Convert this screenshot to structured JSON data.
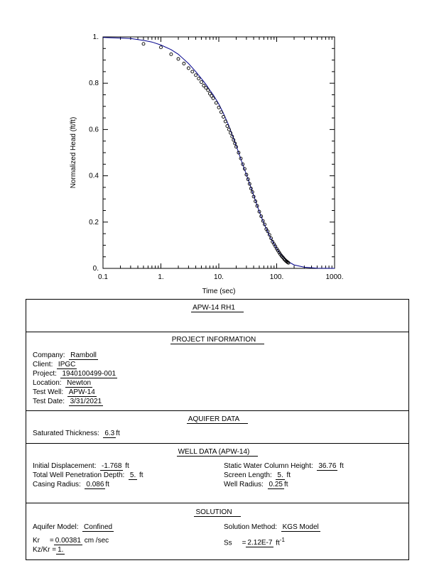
{
  "chart_data": {
    "type": "scatter",
    "xscale": "log",
    "xlim": [
      0.1,
      1000
    ],
    "ylim": [
      0,
      1
    ],
    "xlabel": "Time  (sec)",
    "ylabel": "Normalized Head (ft/ft)",
    "xticks": [
      "0.1",
      "1.",
      "10.",
      "100.",
      "1000."
    ],
    "yticks": [
      "0.",
      "0.2",
      "0.4",
      "0.6",
      "0.8",
      "1."
    ],
    "points": [
      [
        0.5,
        0.97
      ],
      [
        1.0,
        0.955
      ],
      [
        1.5,
        0.925
      ],
      [
        2.0,
        0.905
      ],
      [
        2.5,
        0.885
      ],
      [
        3.0,
        0.865
      ],
      [
        3.5,
        0.85
      ],
      [
        4.0,
        0.835
      ],
      [
        4.5,
        0.82
      ],
      [
        5.0,
        0.805
      ],
      [
        5.5,
        0.79
      ],
      [
        6.0,
        0.78
      ],
      [
        6.5,
        0.77
      ],
      [
        7.0,
        0.755
      ],
      [
        7.5,
        0.745
      ],
      [
        8.0,
        0.735
      ],
      [
        9.0,
        0.715
      ],
      [
        10.0,
        0.695
      ],
      [
        11.0,
        0.675
      ],
      [
        12.0,
        0.655
      ],
      [
        13.0,
        0.635
      ],
      [
        14.0,
        0.615
      ],
      [
        15.0,
        0.6
      ],
      [
        16.0,
        0.585
      ],
      [
        17.0,
        0.57
      ],
      [
        18.0,
        0.555
      ],
      [
        19.0,
        0.54
      ],
      [
        20.0,
        0.525
      ],
      [
        22.0,
        0.5
      ],
      [
        24.0,
        0.475
      ],
      [
        26.0,
        0.45
      ],
      [
        28.0,
        0.43
      ],
      [
        30.0,
        0.405
      ],
      [
        32.0,
        0.385
      ],
      [
        34.0,
        0.365
      ],
      [
        36.0,
        0.345
      ],
      [
        38.0,
        0.33
      ],
      [
        40.0,
        0.31
      ],
      [
        43.0,
        0.29
      ],
      [
        46.0,
        0.27
      ],
      [
        50.0,
        0.245
      ],
      [
        54.0,
        0.225
      ],
      [
        58.0,
        0.205
      ],
      [
        62.0,
        0.19
      ],
      [
        66.0,
        0.17
      ],
      [
        70.0,
        0.16
      ],
      [
        75.0,
        0.145
      ],
      [
        80.0,
        0.13
      ],
      [
        85.0,
        0.115
      ],
      [
        90.0,
        0.105
      ],
      [
        95.0,
        0.095
      ],
      [
        100.0,
        0.085
      ],
      [
        105.0,
        0.077
      ],
      [
        110.0,
        0.069
      ],
      [
        115.0,
        0.062
      ],
      [
        120.0,
        0.055
      ],
      [
        125.0,
        0.05
      ],
      [
        130.0,
        0.045
      ],
      [
        135.0,
        0.04
      ],
      [
        140.0,
        0.036
      ],
      [
        145.0,
        0.032
      ],
      [
        150.0,
        0.029
      ],
      [
        155.0,
        0.026
      ],
      [
        160.0,
        0.024
      ]
    ],
    "curve": [
      [
        0.1,
        0.998
      ],
      [
        0.2,
        0.995
      ],
      [
        0.3,
        0.993
      ],
      [
        0.5,
        0.985
      ],
      [
        0.7,
        0.978
      ],
      [
        1.0,
        0.965
      ],
      [
        1.5,
        0.945
      ],
      [
        2.0,
        0.925
      ],
      [
        3.0,
        0.885
      ],
      [
        4.0,
        0.85
      ],
      [
        5.0,
        0.82
      ],
      [
        6.0,
        0.795
      ],
      [
        7.0,
        0.77
      ],
      [
        8.0,
        0.75
      ],
      [
        10.0,
        0.71
      ],
      [
        12.0,
        0.67
      ],
      [
        15.0,
        0.615
      ],
      [
        20.0,
        0.53
      ],
      [
        25.0,
        0.46
      ],
      [
        30.0,
        0.405
      ],
      [
        40.0,
        0.315
      ],
      [
        50.0,
        0.245
      ],
      [
        60.0,
        0.195
      ],
      [
        70.0,
        0.158
      ],
      [
        80.0,
        0.128
      ],
      [
        100.0,
        0.085
      ],
      [
        120.0,
        0.058
      ],
      [
        150.0,
        0.032
      ],
      [
        200.0,
        0.015
      ],
      [
        300.0,
        0.005
      ],
      [
        500.0,
        0.001
      ],
      [
        1000.0,
        0.0
      ]
    ],
    "marker_color": "#000000",
    "curve_color": "#00008b"
  },
  "report": {
    "title": "APW-14  RH1",
    "project": {
      "heading": "PROJECT   INFORMATION",
      "company_label": "Company:",
      "company": "Ramboll",
      "client_label": "Client:",
      "client": "IPGC",
      "project_label": "Project:",
      "project": "1940100499-001",
      "location_label": "Location:",
      "location": "Newton",
      "well_label": "Test Well:",
      "well": "APW-14",
      "date_label": "Test Date:",
      "date": "3/31/2021"
    },
    "aquifer": {
      "heading": "AQUIFER   DATA",
      "thickness_label": "Saturated  Thickness:",
      "thickness": "6.3",
      "thickness_unit": "ft"
    },
    "well": {
      "heading": "WELL  DATA (APW-14)",
      "init_disp_label": "Initial  Displacement:",
      "init_disp": "-1.768",
      "init_disp_unit": "ft",
      "pen_label": "Total  Well  Penetration  Depth:",
      "pen": "5.",
      "pen_unit": "ft",
      "casing_label": "Casing  Radius:",
      "casing": "0.086",
      "casing_unit": "ft",
      "swc_label": "Static  Water  Column  Height:",
      "swc": "36.76",
      "swc_unit": "ft",
      "screen_label": "Screen  Length:",
      "screen": "5.",
      "screen_unit": "ft",
      "radius_label": "Well  Radius:",
      "radius": "0.25",
      "radius_unit": "ft"
    },
    "solution": {
      "heading": "SOLUTION",
      "model_label": "Aquifer  Model:",
      "model": "Confined",
      "method_label": "Solution  Method:",
      "method": "KGS  Model",
      "kr_label": "Kr",
      "kr_eq": "=",
      "kr": "0.00381",
      "kr_unit": "cm /sec",
      "ss_label": "Ss",
      "ss_eq": "=",
      "ss": "2.12E-7",
      "ss_unit": "ft",
      "ss_exp": "-1",
      "kz_label": "Kz/Kr",
      "kz_eq": "=",
      "kz": "1."
    }
  }
}
